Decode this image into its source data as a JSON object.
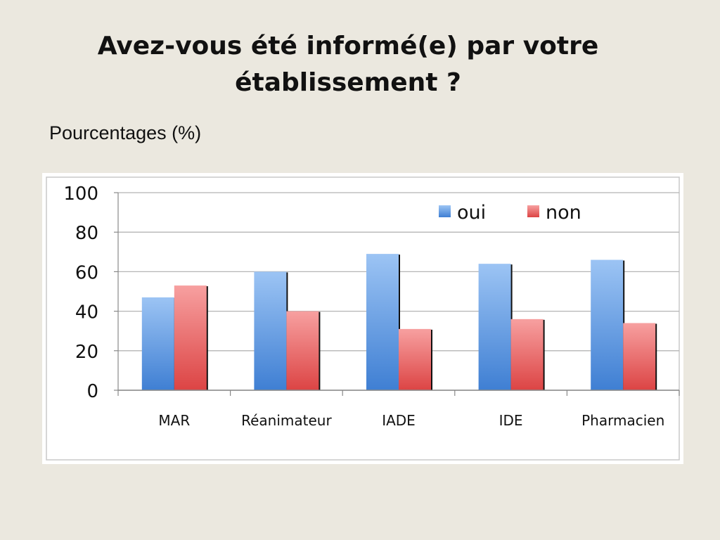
{
  "slide": {
    "title_line1": "Avez-vous été informé(e) par votre",
    "title_line2": "établissement ?",
    "subtitle": "Pourcentages (%)"
  },
  "chart_data": {
    "type": "bar",
    "title": "",
    "xlabel": "",
    "ylabel": "",
    "categories": [
      "MAR",
      "Réanimateur",
      "IADE",
      "IDE",
      "Pharmacien"
    ],
    "series": [
      {
        "name": "oui",
        "values": [
          47,
          60,
          69,
          64,
          66
        ],
        "color": "#4f8fdc"
      },
      {
        "name": "non",
        "values": [
          53,
          40,
          31,
          36,
          34
        ],
        "color": "#e85c5c"
      }
    ],
    "ylim": [
      0,
      100
    ],
    "yticks": [
      0,
      20,
      40,
      60,
      80,
      100
    ],
    "grid": true,
    "legend": "top-right"
  }
}
